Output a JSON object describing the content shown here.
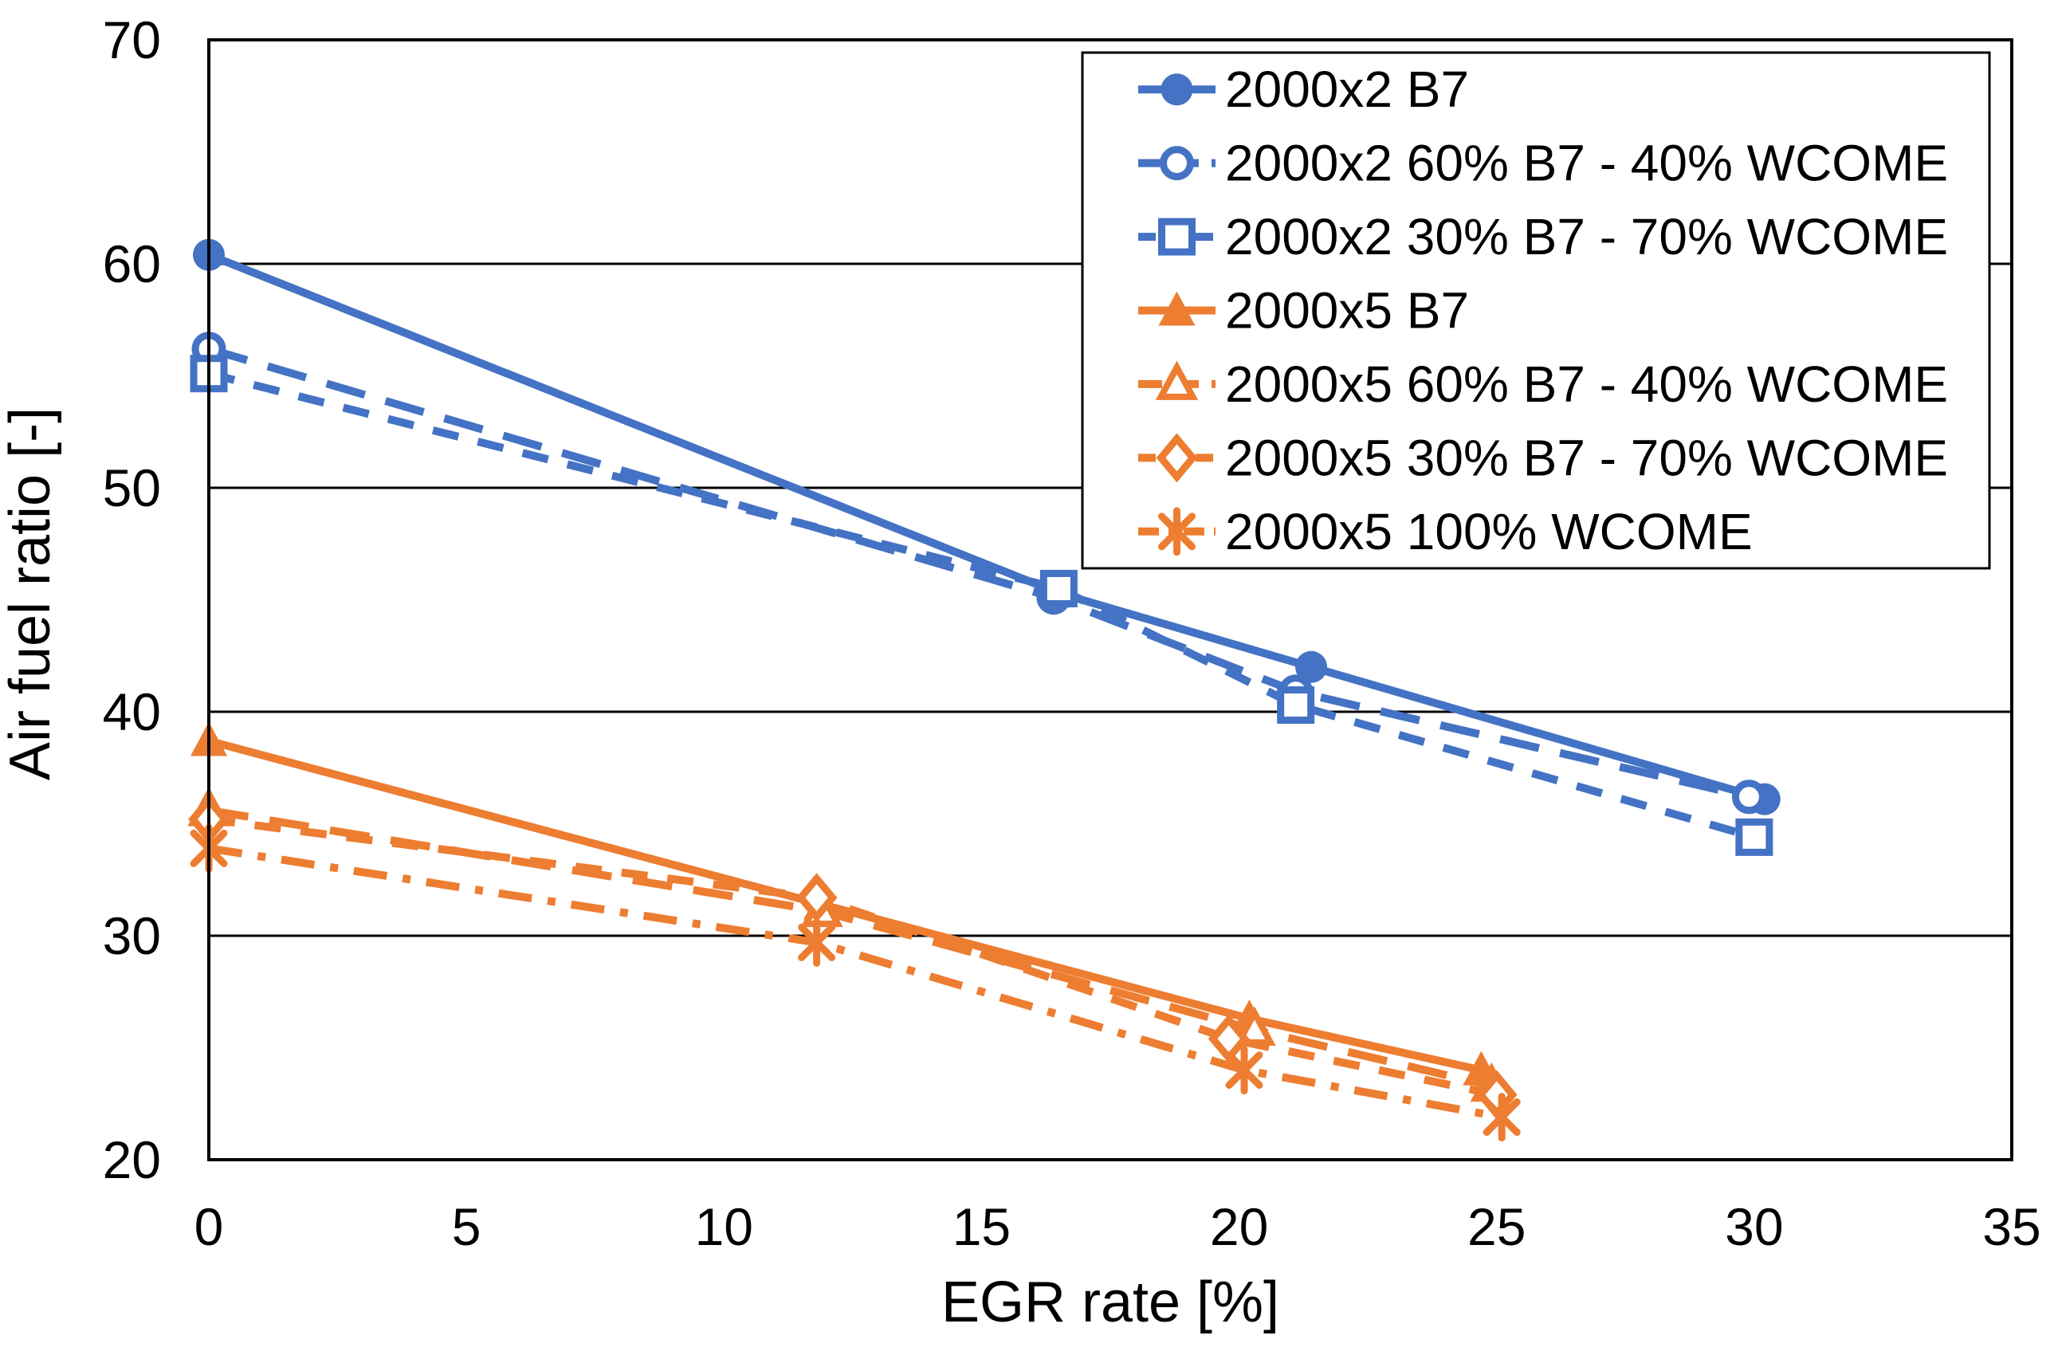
{
  "chart_data": {
    "type": "line",
    "title": "",
    "xlabel": "EGR rate [%]",
    "ylabel": "Air fuel ratio [-]",
    "xlim": [
      0,
      35
    ],
    "ylim": [
      20,
      70
    ],
    "xticks": [
      0,
      5,
      10,
      15,
      20,
      25,
      30,
      35
    ],
    "yticks": [
      20,
      30,
      40,
      50,
      60,
      70
    ],
    "grid": "horizontal-only",
    "legend_position": "top-right-inside",
    "frame": true,
    "colors": {
      "blue": "#4472C4",
      "orange": "#ED7D31",
      "axis": "#000000",
      "background": "#FFFFFF"
    },
    "series": [
      {
        "name": "2000x2 B7",
        "color": "#4472C4",
        "marker": "circle-filled",
        "line": "solid",
        "points": [
          [
            0,
            60.4
          ],
          [
            16.5,
            45.3
          ],
          [
            21.4,
            42.0
          ],
          [
            30.2,
            36.1
          ]
        ]
      },
      {
        "name": "2000x2 60% B7 - 40% WCOME",
        "color": "#4472C4",
        "marker": "circle-open",
        "line": "long-dash",
        "points": [
          [
            0,
            56.2
          ],
          [
            16.4,
            45.1
          ],
          [
            21.1,
            40.9
          ],
          [
            29.9,
            36.2
          ]
        ]
      },
      {
        "name": "2000x2 30% B7 - 70% WCOME",
        "color": "#4472C4",
        "marker": "square-open",
        "line": "dash",
        "points": [
          [
            0,
            55.1
          ],
          [
            16.5,
            45.5
          ],
          [
            21.1,
            40.3
          ],
          [
            30.0,
            34.4
          ]
        ]
      },
      {
        "name": "2000x5 B7",
        "color": "#ED7D31",
        "marker": "triangle-filled",
        "line": "solid",
        "points": [
          [
            0,
            38.7
          ],
          [
            11.9,
            31.4
          ],
          [
            20.2,
            26.3
          ],
          [
            24.7,
            24.0
          ]
        ]
      },
      {
        "name": "2000x5 60% B7 - 40% WCOME",
        "color": "#ED7D31",
        "marker": "triangle-open",
        "line": "long-dash",
        "points": [
          [
            0,
            35.6
          ],
          [
            11.9,
            31.1
          ],
          [
            20.3,
            25.8
          ],
          [
            24.9,
            23.3
          ]
        ]
      },
      {
        "name": "2000x5 30% B7 - 70% WCOME",
        "color": "#ED7D31",
        "marker": "diamond-open",
        "line": "dash",
        "points": [
          [
            0,
            35.2
          ],
          [
            11.8,
            31.7
          ],
          [
            19.8,
            25.4
          ],
          [
            25.0,
            22.9
          ]
        ]
      },
      {
        "name": "2000x5 100% WCOME",
        "color": "#ED7D31",
        "marker": "asterisk",
        "line": "dash-dot",
        "points": [
          [
            0,
            33.9
          ],
          [
            11.8,
            29.7
          ],
          [
            20.1,
            24.0
          ],
          [
            25.1,
            21.9
          ]
        ]
      }
    ]
  }
}
